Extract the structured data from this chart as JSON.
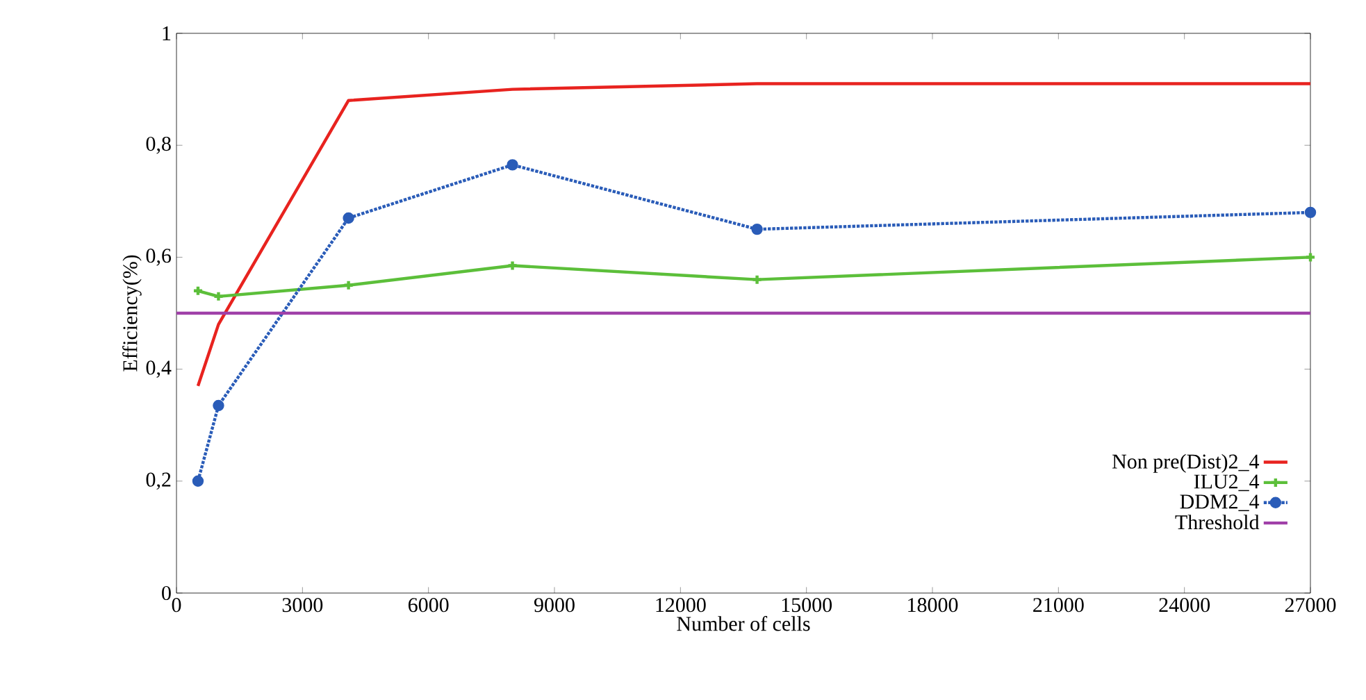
{
  "chart_data": {
    "type": "line",
    "xlabel": "Number of cells",
    "ylabel": "Efficiency(%)",
    "x": [
      512,
      1000,
      4096,
      8000,
      13824,
      27000
    ],
    "series": [
      {
        "name": "Non pre(Dist)2_4",
        "color": "#e8231f",
        "values": [
          0.37,
          0.48,
          0.88,
          0.9,
          0.91,
          0.91
        ]
      },
      {
        "name": "ILU2_4",
        "color": "#5cbf3a",
        "marker": "cross",
        "values": [
          0.54,
          0.53,
          0.55,
          0.585,
          0.56,
          0.6
        ]
      },
      {
        "name": "DDM2_4",
        "color": "#2a5cb8",
        "marker": "circle",
        "line_style": "dotted",
        "values": [
          0.2,
          0.335,
          0.67,
          0.765,
          0.65,
          0.68
        ]
      }
    ],
    "ref_lines": [
      {
        "axis": "y",
        "value": 0.5,
        "label": "Threshold",
        "color": "#a040a8"
      }
    ],
    "xlim": [
      0,
      27000
    ],
    "ylim": [
      0,
      1
    ],
    "xticks": [
      0,
      3000,
      6000,
      9000,
      12000,
      15000,
      18000,
      21000,
      24000,
      27000
    ],
    "yticks": [
      0,
      {
        "value": 0.2,
        "label": "0,2"
      },
      {
        "value": 0.4,
        "label": "0,4"
      },
      {
        "value": 0.6,
        "label": "0,6"
      },
      {
        "value": 0.8,
        "label": "0,8"
      },
      1
    ],
    "legend": "bottom right",
    "grid": false
  }
}
